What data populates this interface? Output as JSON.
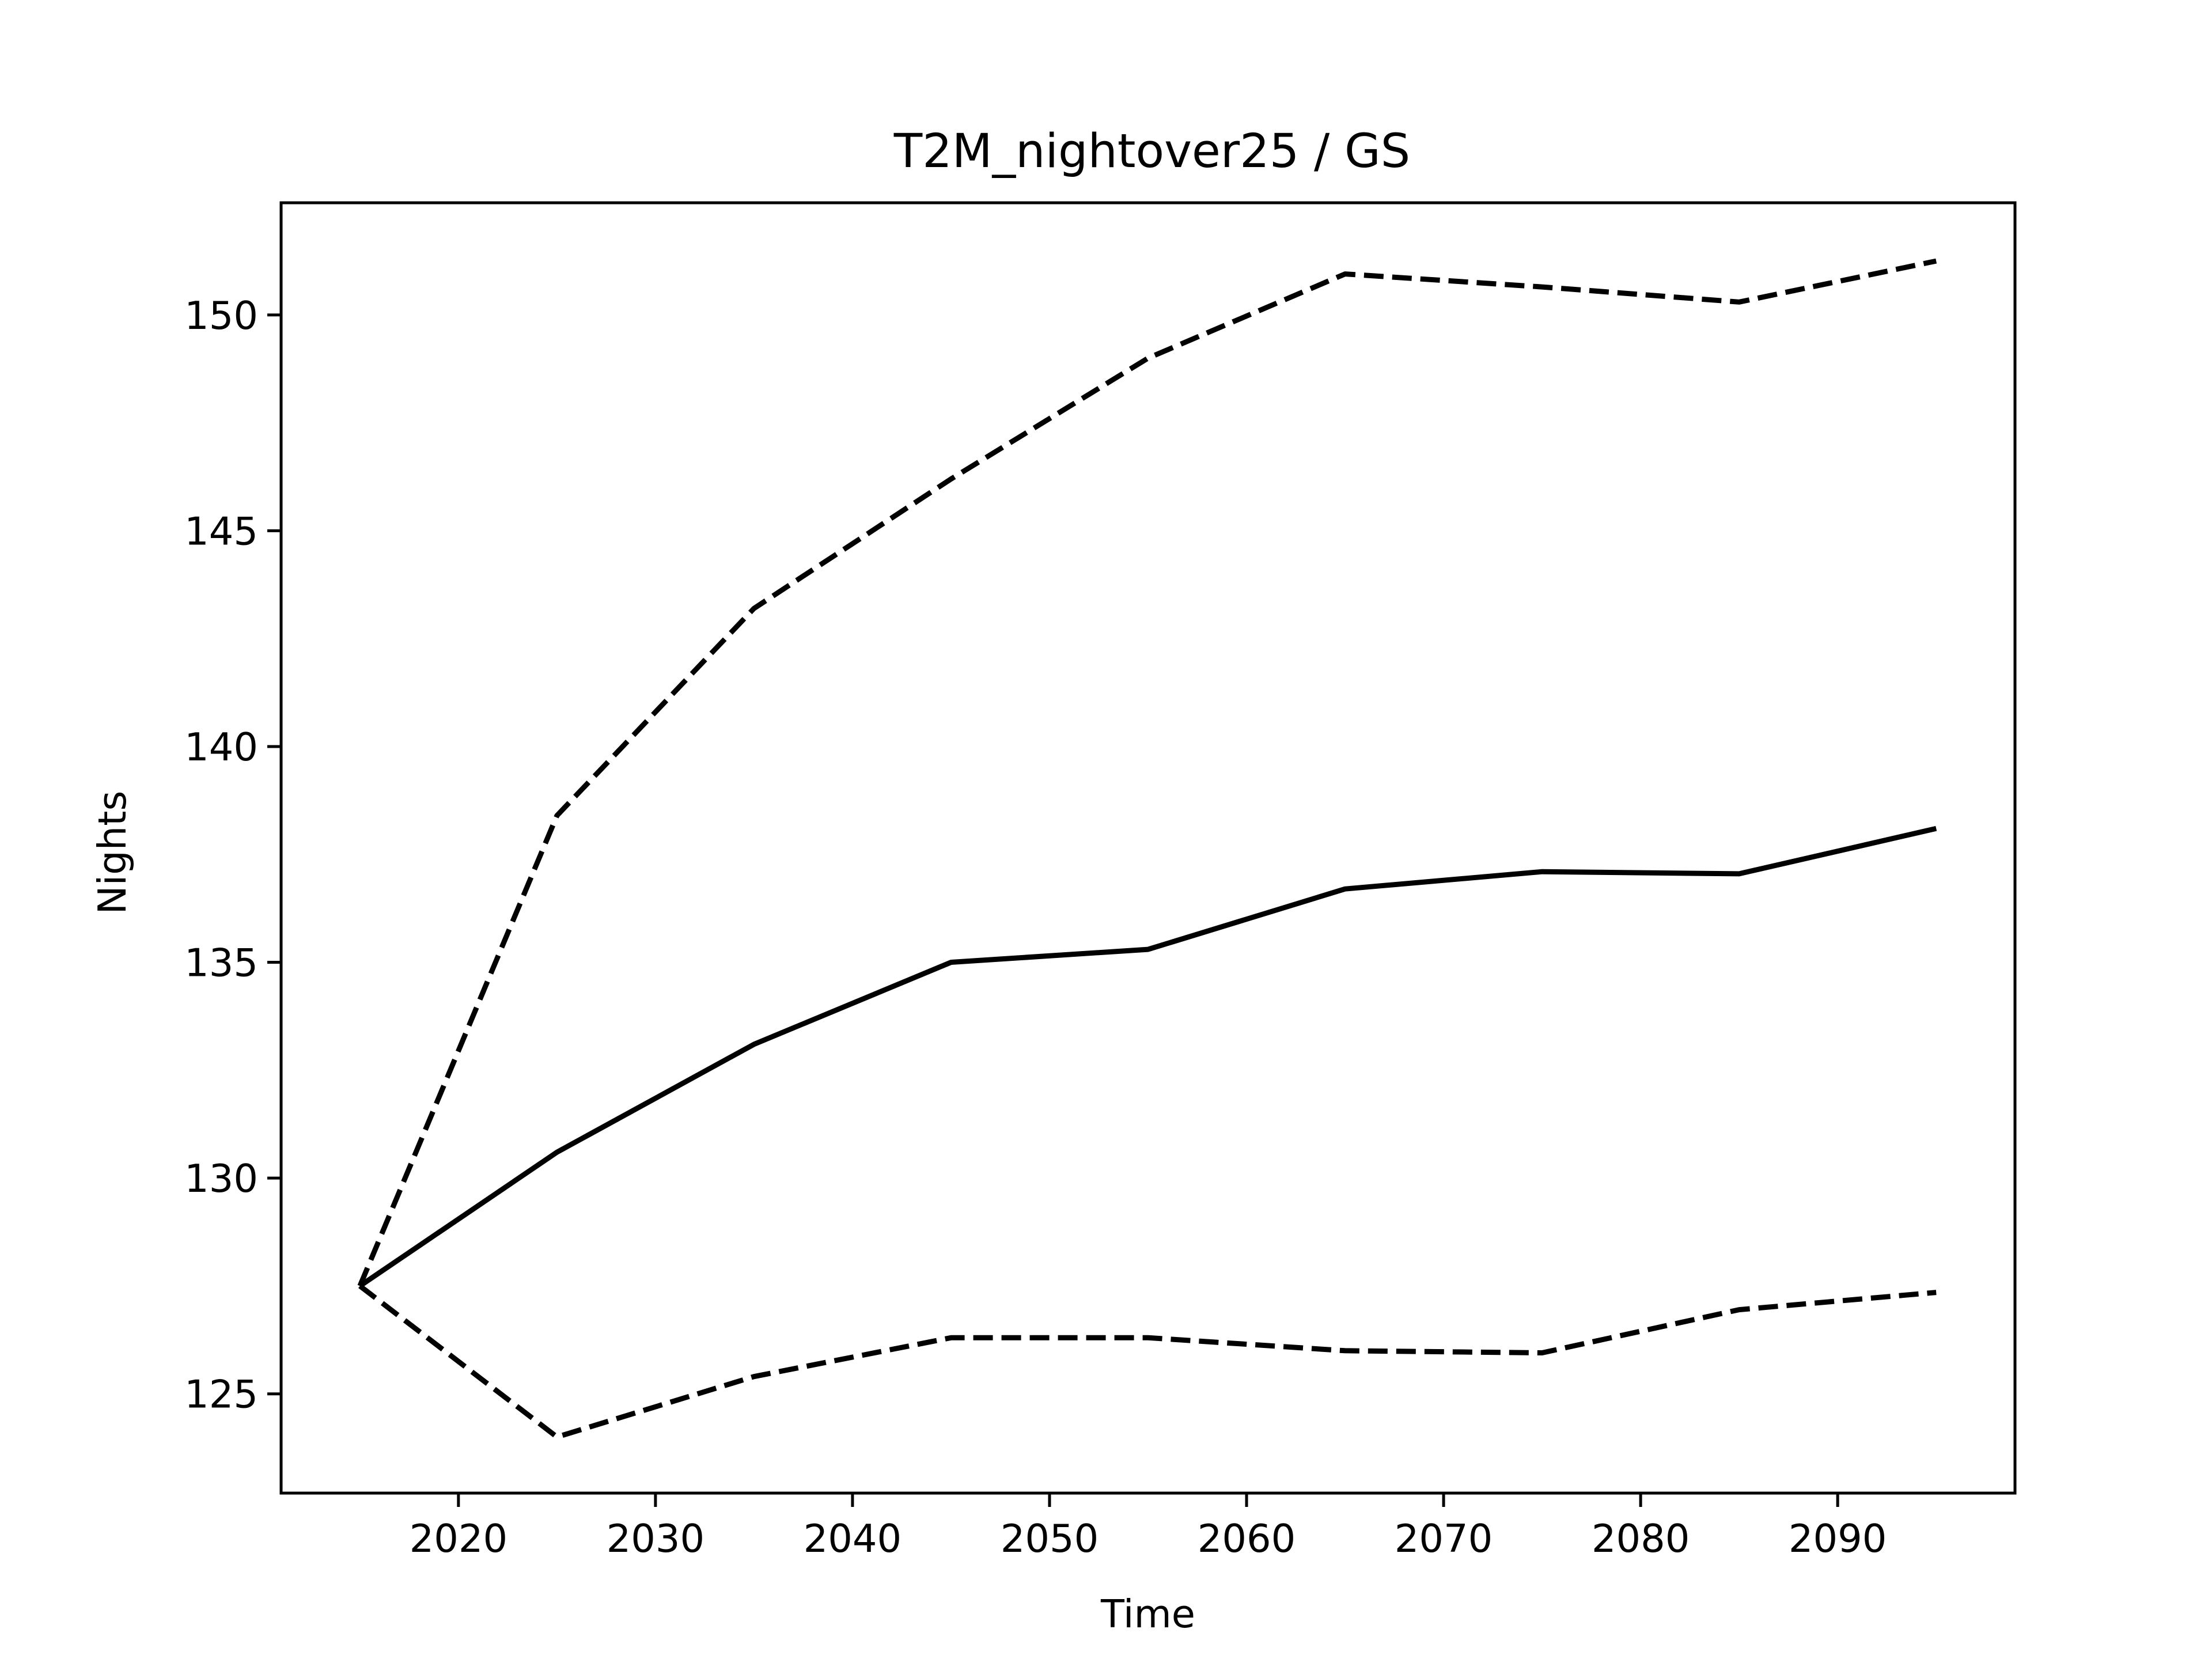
{
  "chart_data": {
    "type": "line",
    "title": "T2M_nightover25 / GS",
    "xlabel": "Time",
    "ylabel": "Nights",
    "xlim": [
      2011,
      2099
    ],
    "ylim": [
      122.7,
      152.6
    ],
    "xticks": [
      2020,
      2030,
      2040,
      2050,
      2060,
      2070,
      2080,
      2090
    ],
    "yticks": [
      125,
      130,
      135,
      140,
      145,
      150
    ],
    "grid": false,
    "legend": "none",
    "x": [
      2015,
      2025,
      2035,
      2045,
      2055,
      2065,
      2075,
      2085,
      2095
    ],
    "series": [
      {
        "style": "solid",
        "color": "#000000",
        "values": [
          127.5,
          130.6,
          133.1,
          135.0,
          135.3,
          136.7,
          137.1,
          137.05,
          138.1
        ]
      },
      {
        "style": "dashed",
        "color": "#000000",
        "values": [
          127.5,
          138.4,
          143.2,
          146.2,
          149.0,
          150.95,
          150.65,
          150.3,
          151.25
        ]
      },
      {
        "style": "dashed",
        "color": "#000000",
        "values": [
          127.5,
          124.0,
          125.4,
          126.3,
          126.3,
          126.0,
          125.95,
          126.95,
          127.35
        ]
      }
    ]
  }
}
